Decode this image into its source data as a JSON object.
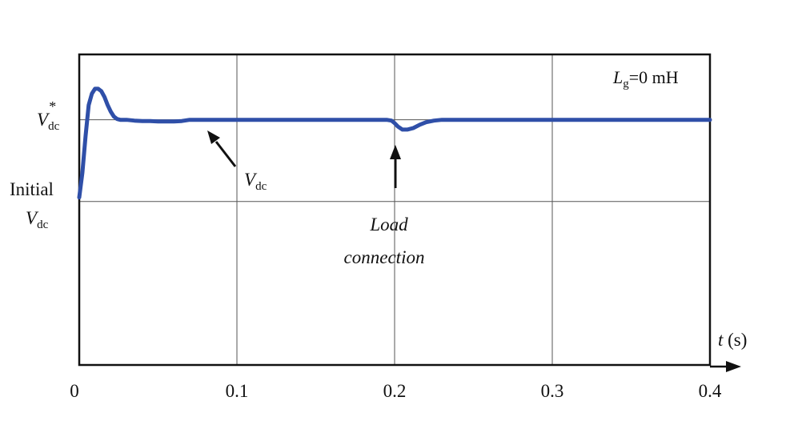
{
  "chart_data": {
    "type": "line",
    "title": "",
    "xlabel": "t (s)",
    "xlabel_var": "t",
    "xlabel_unit": "(s)",
    "ylabel": "",
    "xlim": [
      0,
      0.4
    ],
    "y_reference_levels": {
      "initial": 0,
      "reference": 1
    },
    "ylim": [
      -2,
      1.8
    ],
    "x_ticks": [
      0,
      0.1,
      0.2,
      0.3,
      0.4
    ],
    "x_tick_labels": [
      "0",
      "0.1",
      "0.2",
      "0.3",
      "0.4"
    ],
    "grid": true,
    "y_tick_labels": {
      "reference": {
        "main": "V",
        "sub": "dc",
        "sup": "*"
      },
      "initial_word": "Initial",
      "initial": {
        "main": "V",
        "sub": "dc"
      }
    },
    "legend_box": {
      "main": "L",
      "sub": "g",
      "rest": "=0 mH"
    },
    "annotations": {
      "vdc_curve": {
        "main": "V",
        "sub": "dc"
      },
      "load_line1": "Load",
      "load_line2": "connection"
    },
    "series": [
      {
        "name": "",
        "color": "#2f4fa8",
        "x": [
          0,
          0.002,
          0.004,
          0.006,
          0.008,
          0.01,
          0.012,
          0.014,
          0.016,
          0.018,
          0.02,
          0.022,
          0.024,
          0.026,
          0.028,
          0.03,
          0.035,
          0.04,
          0.045,
          0.05,
          0.055,
          0.06,
          0.065,
          0.07,
          0.08,
          0.1,
          0.15,
          0.195,
          0.198,
          0.2,
          0.202,
          0.205,
          0.208,
          0.212,
          0.216,
          0.22,
          0.225,
          0.23,
          0.25,
          0.3,
          0.35,
          0.4
        ],
        "y": [
          0.05,
          0.35,
          0.8,
          1.18,
          1.32,
          1.38,
          1.38,
          1.35,
          1.28,
          1.18,
          1.1,
          1.04,
          1.01,
          1.0,
          1.0,
          1.0,
          0.99,
          0.985,
          0.985,
          0.98,
          0.98,
          0.98,
          0.985,
          1.0,
          1.0,
          1.0,
          1.0,
          1.0,
          0.99,
          0.96,
          0.92,
          0.88,
          0.88,
          0.9,
          0.94,
          0.97,
          0.99,
          1.0,
          1.0,
          1.0,
          1.0,
          1.0
        ]
      }
    ]
  }
}
